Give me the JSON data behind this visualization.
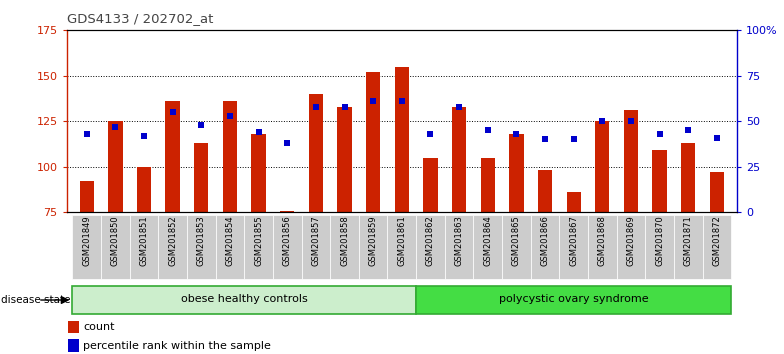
{
  "title": "GDS4133 / 202702_at",
  "samples": [
    "GSM201849",
    "GSM201850",
    "GSM201851",
    "GSM201852",
    "GSM201853",
    "GSM201854",
    "GSM201855",
    "GSM201856",
    "GSM201857",
    "GSM201858",
    "GSM201859",
    "GSM201861",
    "GSM201862",
    "GSM201863",
    "GSM201864",
    "GSM201865",
    "GSM201866",
    "GSM201867",
    "GSM201868",
    "GSM201869",
    "GSM201870",
    "GSM201871",
    "GSM201872"
  ],
  "counts": [
    92,
    125,
    100,
    136,
    113,
    136,
    118,
    76,
    140,
    133,
    152,
    155,
    105,
    133,
    105,
    118,
    98,
    86,
    125,
    131,
    109,
    113,
    97
  ],
  "percentile_values_left_scale": [
    118,
    122,
    117,
    130,
    123,
    128,
    119,
    113,
    133,
    133,
    136,
    136,
    118,
    133,
    120,
    118,
    115,
    115,
    125,
    125,
    118,
    120,
    116
  ],
  "bar_color": "#cc2200",
  "dot_color": "#0000cc",
  "ylim_left": [
    75,
    175
  ],
  "ylim_right": [
    0,
    100
  ],
  "yticks_left": [
    75,
    100,
    125,
    150,
    175
  ],
  "yticks_right": [
    0,
    25,
    50,
    75,
    100
  ],
  "ytick_labels_right": [
    "0",
    "25",
    "50",
    "75",
    "100%"
  ],
  "grid_lines_at": [
    100,
    125,
    150
  ],
  "group1_label": "obese healthy controls",
  "group2_label": "polycystic ovary syndrome",
  "group1_count": 12,
  "group2_count": 11,
  "disease_state_label": "disease state",
  "legend_count_label": "count",
  "legend_pct_label": "percentile rank within the sample",
  "group1_color": "#cceecc",
  "group2_color": "#44dd44",
  "group_border_color": "#33aa33",
  "xtick_bg_color": "#cccccc"
}
